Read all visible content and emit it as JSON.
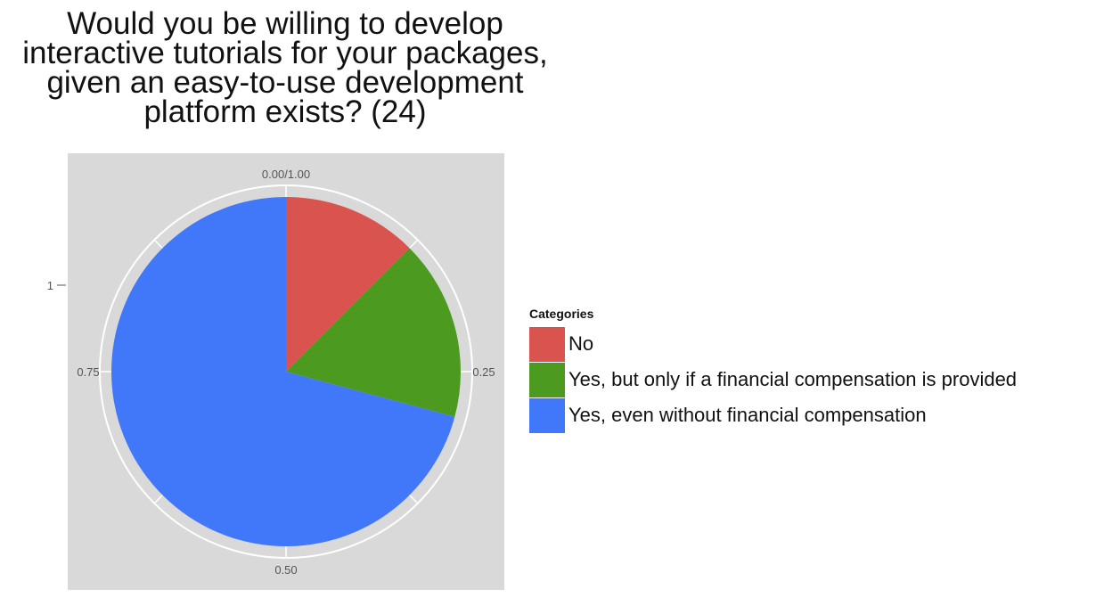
{
  "chart_data": {
    "type": "pie",
    "title": "Would you be willing to develop\ninteractive tutorials for your packages,\ngiven an easy-to-use development\nplatform exists?  (24)",
    "categories": [
      "No",
      "Yes, but only if a financial compensation is provided",
      "Yes, even without financial compensation"
    ],
    "values": [
      0.125,
      0.1667,
      0.7083
    ],
    "colors": [
      "#d9534f",
      "#4c9a20",
      "#4178fa"
    ],
    "legend_title": "Categories",
    "legend_position": "right",
    "angle_ticks": [
      "0.00/1.00",
      "0.25",
      "0.50",
      "0.75"
    ],
    "y_tick": "1",
    "panel_background": "#d9d9d9",
    "grid": true
  }
}
